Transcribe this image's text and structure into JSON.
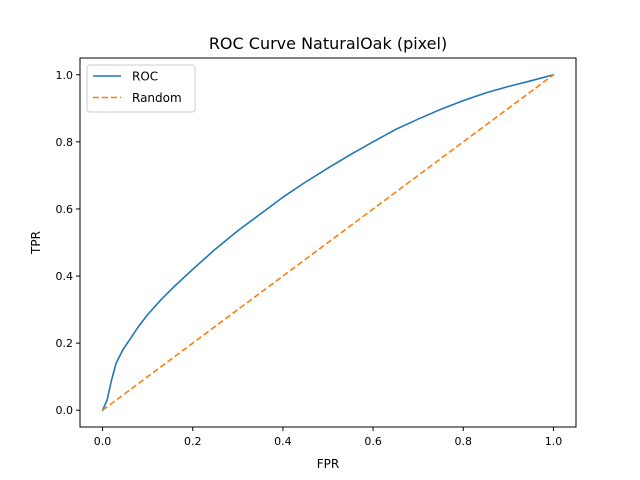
{
  "chart_data": {
    "type": "line",
    "title": "ROC Curve NaturalOak (pixel)",
    "xlabel": "FPR",
    "ylabel": "TPR",
    "xlim": [
      -0.05,
      1.05
    ],
    "ylim": [
      -0.05,
      1.05
    ],
    "xticks": [
      0.0,
      0.2,
      0.4,
      0.6,
      0.8,
      1.0
    ],
    "yticks": [
      0.0,
      0.2,
      0.4,
      0.6,
      0.8,
      1.0
    ],
    "xtick_labels": [
      "0.0",
      "0.2",
      "0.4",
      "0.6",
      "0.8",
      "1.0"
    ],
    "ytick_labels": [
      "0.0",
      "0.2",
      "0.4",
      "0.6",
      "0.8",
      "1.0"
    ],
    "grid": false,
    "legend": "top-left",
    "series": [
      {
        "name": "ROC",
        "color": "#1f77b4",
        "dash": "solid",
        "x": [
          0.0,
          0.01,
          0.02,
          0.03,
          0.045,
          0.06,
          0.08,
          0.1,
          0.13,
          0.16,
          0.2,
          0.25,
          0.3,
          0.35,
          0.4,
          0.45,
          0.5,
          0.55,
          0.6,
          0.65,
          0.7,
          0.75,
          0.8,
          0.85,
          0.9,
          0.95,
          1.0
        ],
        "y": [
          0.0,
          0.03,
          0.09,
          0.14,
          0.18,
          0.21,
          0.25,
          0.285,
          0.33,
          0.37,
          0.42,
          0.48,
          0.535,
          0.585,
          0.635,
          0.68,
          0.722,
          0.762,
          0.8,
          0.837,
          0.868,
          0.897,
          0.923,
          0.946,
          0.965,
          0.982,
          1.0
        ]
      },
      {
        "name": "Random",
        "color": "#ff7f0e",
        "dash": "dashed",
        "x": [
          0.0,
          1.0
        ],
        "y": [
          0.0,
          1.0
        ]
      }
    ]
  }
}
